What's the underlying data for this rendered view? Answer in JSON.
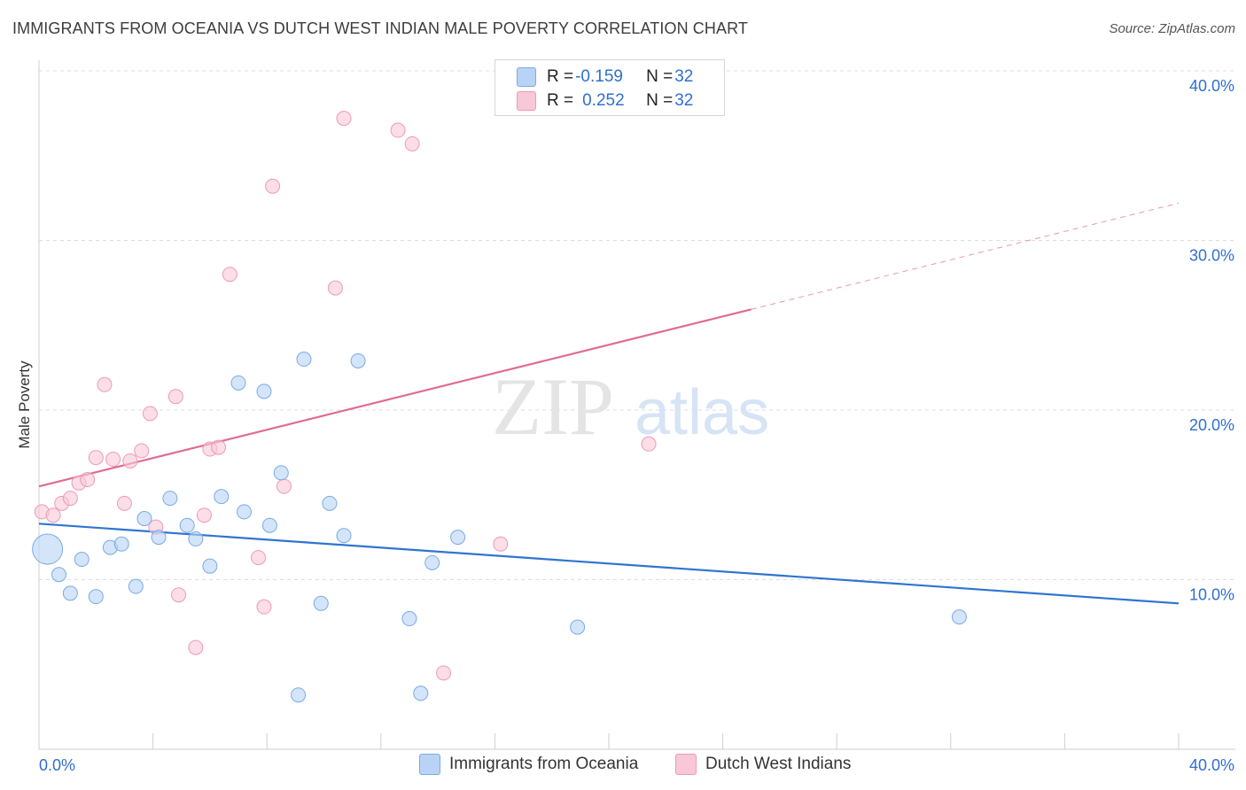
{
  "title": "IMMIGRANTS FROM OCEANIA VS DUTCH WEST INDIAN MALE POVERTY CORRELATION CHART",
  "source": "Source: ZipAtlas.com",
  "watermark": {
    "zip": "ZIP",
    "atlas": "atlas"
  },
  "legend_top": {
    "row1": {
      "r_label": "R = ",
      "r_value": "-0.159",
      "n_label": "N = ",
      "n_value": "32"
    },
    "row2": {
      "r_label": "R = ",
      "r_value": "0.252",
      "n_label": "N = ",
      "n_value": "32"
    }
  },
  "bottom_legend": {
    "series1": "Immigrants from Oceania",
    "series2": "Dutch West Indians"
  },
  "chart_data": {
    "type": "scatter",
    "title": "IMMIGRANTS FROM OCEANIA VS DUTCH WEST INDIAN MALE POVERTY CORRELATION CHART",
    "xlabel": "",
    "ylabel": "Male Poverty",
    "xlim": [
      0,
      40
    ],
    "ylim": [
      0,
      40
    ],
    "x_tick_labels": [
      "0.0%",
      "40.0%"
    ],
    "y_tick_labels": [
      "10.0%",
      "20.0%",
      "30.0%",
      "40.0%"
    ],
    "y_ticks": [
      10,
      20,
      30,
      40
    ],
    "grid": "horizontal dashed",
    "legend_position": "top-center and bottom",
    "colors": {
      "series1_fill": "#b8d3f5",
      "series1_stroke": "#7aaae6",
      "series1_line": "#2f74d0",
      "series2_fill": "#f8c8d8",
      "series2_stroke": "#ee9ab6",
      "series2_line": "#e06b94",
      "axis_label": "#2f6fd0"
    },
    "series": [
      {
        "name": "Immigrants from Oceania",
        "r": -0.159,
        "n": 32,
        "trend": {
          "x": [
            0,
            40
          ],
          "y": [
            13.3,
            8.6
          ]
        },
        "points": [
          {
            "x": 0.3,
            "y": 11.8,
            "big": true
          },
          {
            "x": 0.7,
            "y": 10.3
          },
          {
            "x": 1.1,
            "y": 9.2
          },
          {
            "x": 1.5,
            "y": 11.2
          },
          {
            "x": 2.0,
            "y": 9.0
          },
          {
            "x": 2.5,
            "y": 11.9
          },
          {
            "x": 2.9,
            "y": 12.1
          },
          {
            "x": 3.4,
            "y": 9.6
          },
          {
            "x": 3.7,
            "y": 13.6
          },
          {
            "x": 4.2,
            "y": 12.5
          },
          {
            "x": 4.6,
            "y": 14.8
          },
          {
            "x": 5.2,
            "y": 13.2
          },
          {
            "x": 5.5,
            "y": 12.4
          },
          {
            "x": 6.0,
            "y": 10.8
          },
          {
            "x": 6.4,
            "y": 14.9
          },
          {
            "x": 7.0,
            "y": 21.6
          },
          {
            "x": 7.2,
            "y": 14.0
          },
          {
            "x": 7.9,
            "y": 21.1
          },
          {
            "x": 8.1,
            "y": 13.2
          },
          {
            "x": 8.5,
            "y": 16.3
          },
          {
            "x": 9.1,
            "y": 3.2
          },
          {
            "x": 9.3,
            "y": 23.0
          },
          {
            "x": 9.9,
            "y": 8.6
          },
          {
            "x": 10.2,
            "y": 14.5
          },
          {
            "x": 10.7,
            "y": 12.6
          },
          {
            "x": 11.2,
            "y": 22.9
          },
          {
            "x": 13.0,
            "y": 7.7
          },
          {
            "x": 13.4,
            "y": 3.3
          },
          {
            "x": 13.8,
            "y": 11.0
          },
          {
            "x": 14.7,
            "y": 12.5
          },
          {
            "x": 18.9,
            "y": 7.2
          },
          {
            "x": 32.3,
            "y": 7.8
          }
        ]
      },
      {
        "name": "Dutch West Indians",
        "r": 0.252,
        "n": 32,
        "trend": {
          "x": [
            0,
            40
          ],
          "y": [
            15.5,
            32.2
          ],
          "solid_until_x": 25
        },
        "points": [
          {
            "x": 0.1,
            "y": 14.0
          },
          {
            "x": 0.5,
            "y": 13.8
          },
          {
            "x": 0.8,
            "y": 14.5
          },
          {
            "x": 1.1,
            "y": 14.8
          },
          {
            "x": 1.4,
            "y": 15.7
          },
          {
            "x": 1.7,
            "y": 15.9
          },
          {
            "x": 2.0,
            "y": 17.2
          },
          {
            "x": 2.3,
            "y": 21.5
          },
          {
            "x": 2.6,
            "y": 17.1
          },
          {
            "x": 3.0,
            "y": 14.5
          },
          {
            "x": 3.2,
            "y": 17.0
          },
          {
            "x": 3.6,
            "y": 17.6
          },
          {
            "x": 3.9,
            "y": 19.8
          },
          {
            "x": 4.1,
            "y": 13.1
          },
          {
            "x": 4.8,
            "y": 20.8
          },
          {
            "x": 4.9,
            "y": 9.1
          },
          {
            "x": 5.5,
            "y": 6.0
          },
          {
            "x": 5.8,
            "y": 13.8
          },
          {
            "x": 6.0,
            "y": 17.7
          },
          {
            "x": 6.3,
            "y": 17.8
          },
          {
            "x": 6.7,
            "y": 28.0
          },
          {
            "x": 7.7,
            "y": 11.3
          },
          {
            "x": 7.9,
            "y": 8.4
          },
          {
            "x": 8.2,
            "y": 33.2
          },
          {
            "x": 8.6,
            "y": 15.5
          },
          {
            "x": 10.4,
            "y": 27.2
          },
          {
            "x": 10.7,
            "y": 37.2
          },
          {
            "x": 12.6,
            "y": 36.5
          },
          {
            "x": 13.1,
            "y": 35.7
          },
          {
            "x": 14.2,
            "y": 4.5
          },
          {
            "x": 16.2,
            "y": 12.1
          },
          {
            "x": 21.4,
            "y": 18.0
          }
        ]
      }
    ]
  }
}
